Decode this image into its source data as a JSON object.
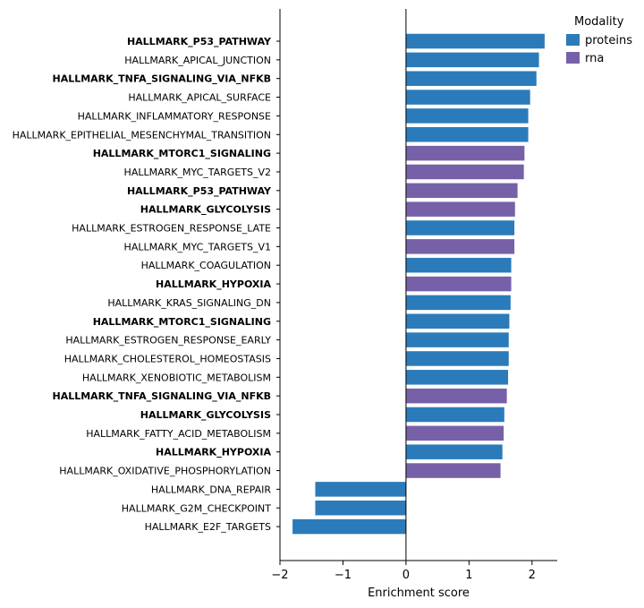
{
  "chart_data": {
    "type": "bar",
    "orientation": "horizontal",
    "xlabel": "Enrichment score",
    "ylabel": "",
    "xlim": [
      -2,
      2.4
    ],
    "xticks": [
      -2,
      -1,
      0,
      1,
      2
    ],
    "xtick_labels": [
      "−2",
      "−1",
      "0",
      "1",
      "2"
    ],
    "grid": false,
    "legend": {
      "title": "Modality",
      "placement": "top-right",
      "entries": [
        {
          "name": "proteins",
          "color": "#2b7bba"
        },
        {
          "name": "rna",
          "color": "#7661a8"
        }
      ]
    },
    "bars": [
      {
        "label": "HALLMARK_P53_PATHWAY",
        "value": 2.2,
        "modality": "proteins",
        "bold": true
      },
      {
        "label": "HALLMARK_APICAL_JUNCTION",
        "value": 2.11,
        "modality": "proteins",
        "bold": false
      },
      {
        "label": "HALLMARK_TNFA_SIGNALING_VIA_NFKB",
        "value": 2.07,
        "modality": "proteins",
        "bold": true
      },
      {
        "label": "HALLMARK_APICAL_SURFACE",
        "value": 1.97,
        "modality": "proteins",
        "bold": false
      },
      {
        "label": "HALLMARK_INFLAMMATORY_RESPONSE",
        "value": 1.94,
        "modality": "proteins",
        "bold": false
      },
      {
        "label": "HALLMARK_EPITHELIAL_MESENCHYMAL_TRANSITION",
        "value": 1.94,
        "modality": "proteins",
        "bold": false
      },
      {
        "label": "HALLMARK_MTORC1_SIGNALING",
        "value": 1.88,
        "modality": "rna",
        "bold": true
      },
      {
        "label": "HALLMARK_MYC_TARGETS_V2",
        "value": 1.87,
        "modality": "rna",
        "bold": false
      },
      {
        "label": "HALLMARK_P53_PATHWAY",
        "value": 1.77,
        "modality": "rna",
        "bold": true
      },
      {
        "label": "HALLMARK_GLYCOLYSIS",
        "value": 1.73,
        "modality": "rna",
        "bold": true
      },
      {
        "label": "HALLMARK_ESTROGEN_RESPONSE_LATE",
        "value": 1.72,
        "modality": "proteins",
        "bold": false
      },
      {
        "label": "HALLMARK_MYC_TARGETS_V1",
        "value": 1.72,
        "modality": "rna",
        "bold": false
      },
      {
        "label": "HALLMARK_COAGULATION",
        "value": 1.67,
        "modality": "proteins",
        "bold": false
      },
      {
        "label": "HALLMARK_HYPOXIA",
        "value": 1.67,
        "modality": "rna",
        "bold": true
      },
      {
        "label": "HALLMARK_KRAS_SIGNALING_DN",
        "value": 1.66,
        "modality": "proteins",
        "bold": false
      },
      {
        "label": "HALLMARK_MTORC1_SIGNALING",
        "value": 1.64,
        "modality": "proteins",
        "bold": true
      },
      {
        "label": "HALLMARK_ESTROGEN_RESPONSE_EARLY",
        "value": 1.63,
        "modality": "proteins",
        "bold": false
      },
      {
        "label": "HALLMARK_CHOLESTEROL_HOMEOSTASIS",
        "value": 1.63,
        "modality": "proteins",
        "bold": false
      },
      {
        "label": "HALLMARK_XENOBIOTIC_METABOLISM",
        "value": 1.62,
        "modality": "proteins",
        "bold": false
      },
      {
        "label": "HALLMARK_TNFA_SIGNALING_VIA_NFKB",
        "value": 1.6,
        "modality": "rna",
        "bold": true
      },
      {
        "label": "HALLMARK_GLYCOLYSIS",
        "value": 1.56,
        "modality": "proteins",
        "bold": true
      },
      {
        "label": "HALLMARK_FATTY_ACID_METABOLISM",
        "value": 1.55,
        "modality": "rna",
        "bold": false
      },
      {
        "label": "HALLMARK_HYPOXIA",
        "value": 1.53,
        "modality": "proteins",
        "bold": true
      },
      {
        "label": "HALLMARK_OXIDATIVE_PHOSPHORYLATION",
        "value": 1.5,
        "modality": "rna",
        "bold": false
      },
      {
        "label": "HALLMARK_DNA_REPAIR",
        "value": -1.44,
        "modality": "proteins",
        "bold": false
      },
      {
        "label": "HALLMARK_G2M_CHECKPOINT",
        "value": -1.44,
        "modality": "proteins",
        "bold": false
      },
      {
        "label": "HALLMARK_E2F_TARGETS",
        "value": -1.8,
        "modality": "proteins",
        "bold": false
      }
    ]
  }
}
